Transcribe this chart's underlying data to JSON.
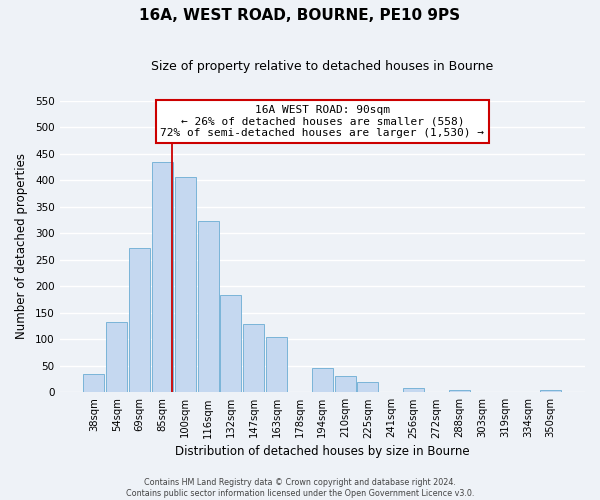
{
  "title": "16A, WEST ROAD, BOURNE, PE10 9PS",
  "subtitle": "Size of property relative to detached houses in Bourne",
  "xlabel": "Distribution of detached houses by size in Bourne",
  "ylabel": "Number of detached properties",
  "bar_color": "#c5d8f0",
  "bar_edge_color": "#7ab4d8",
  "background_color": "#eef2f7",
  "grid_color": "#ffffff",
  "ylim": [
    0,
    550
  ],
  "yticks": [
    0,
    50,
    100,
    150,
    200,
    250,
    300,
    350,
    400,
    450,
    500,
    550
  ],
  "categories": [
    "38sqm",
    "54sqm",
    "69sqm",
    "85sqm",
    "100sqm",
    "116sqm",
    "132sqm",
    "147sqm",
    "163sqm",
    "178sqm",
    "194sqm",
    "210sqm",
    "225sqm",
    "241sqm",
    "256sqm",
    "272sqm",
    "288sqm",
    "303sqm",
    "319sqm",
    "334sqm",
    "350sqm"
  ],
  "values": [
    35,
    133,
    272,
    435,
    405,
    323,
    184,
    128,
    104,
    0,
    46,
    30,
    20,
    0,
    8,
    0,
    5,
    0,
    0,
    0,
    4
  ],
  "annotation_text_line1": "16A WEST ROAD: 90sqm",
  "annotation_text_line2": "← 26% of detached houses are smaller (558)",
  "annotation_text_line3": "72% of semi-detached houses are larger (1,530) →",
  "vline_x": 3.42,
  "footer_line1": "Contains HM Land Registry data © Crown copyright and database right 2024.",
  "footer_line2": "Contains public sector information licensed under the Open Government Licence v3.0."
}
